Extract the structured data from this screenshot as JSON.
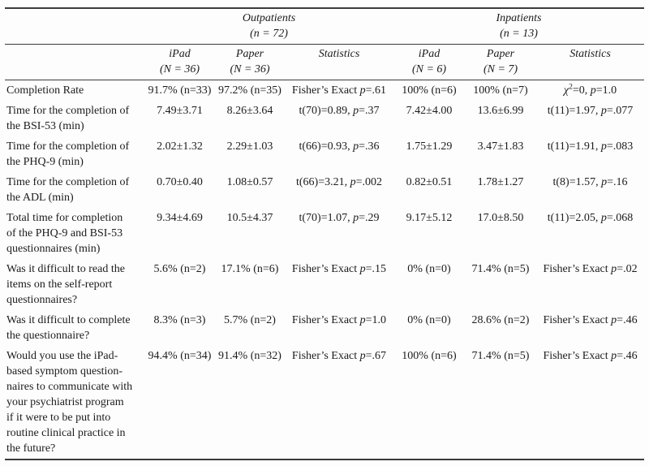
{
  "page": {
    "background": "#fdfdfd",
    "text_color": "#1c1c1c",
    "rule_color": "#3b3b3b"
  },
  "table": {
    "groups": [
      {
        "label": "Outpatients\n(n = 72)"
      },
      {
        "label": "Inpatients\n(n = 13)"
      }
    ],
    "columns": [
      "iPad\n(N = 36)",
      "Paper\n(N = 36)",
      "Statistics",
      "iPad\n(N = 6)",
      "Paper\n(N = 7)",
      "Statistics"
    ],
    "rows": [
      {
        "label": "Completion Rate",
        "cells": [
          "91.7% (n=33)",
          "97.2% (n=35)",
          [
            {
              "t": "Fisher’s Exact ",
              "s": "n"
            },
            {
              "t": "p",
              "s": "i"
            },
            {
              "t": "=.61",
              "s": "n"
            }
          ],
          "100% (n=6)",
          "100% (n=7)",
          [
            {
              "t": "χ",
              "s": "i"
            },
            {
              "t": "2",
              "s": "sup"
            },
            {
              "t": "=0, ",
              "s": "n"
            },
            {
              "t": "p",
              "s": "i"
            },
            {
              "t": "=1.0",
              "s": "n"
            }
          ]
        ]
      },
      {
        "label": "Time for the completion of\nthe BSI-53 (min)",
        "cells": [
          "7.49±3.71",
          "8.26±3.64",
          [
            {
              "t": "t(70)=0.89, ",
              "s": "n"
            },
            {
              "t": "p",
              "s": "i"
            },
            {
              "t": "=.37",
              "s": "n"
            }
          ],
          "7.42±4.00",
          "13.6±6.99",
          [
            {
              "t": "t(11)=1.97, ",
              "s": "n"
            },
            {
              "t": "p",
              "s": "i"
            },
            {
              "t": "=.077",
              "s": "n"
            }
          ]
        ]
      },
      {
        "label": "Time for the completion of\nthe PHQ-9 (min)",
        "cells": [
          "2.02±1.32",
          "2.29±1.03",
          [
            {
              "t": "t(66)=0.93, ",
              "s": "n"
            },
            {
              "t": "p",
              "s": "i"
            },
            {
              "t": "=.36",
              "s": "n"
            }
          ],
          "1.75±1.29",
          "3.47±1.83",
          [
            {
              "t": "t(11)=1.91, ",
              "s": "n"
            },
            {
              "t": "p",
              "s": "i"
            },
            {
              "t": "=.083",
              "s": "n"
            }
          ]
        ]
      },
      {
        "label": "Time for the completion of\nthe ADL (min)",
        "cells": [
          "0.70±0.40",
          "1.08±0.57",
          [
            {
              "t": "t(66)=3.21, ",
              "s": "n"
            },
            {
              "t": "p",
              "s": "i"
            },
            {
              "t": "=.002",
              "s": "n"
            }
          ],
          "0.82±0.51",
          "1.78±1.27",
          [
            {
              "t": "t(8)=1.57, ",
              "s": "n"
            },
            {
              "t": "p",
              "s": "i"
            },
            {
              "t": "=.16",
              "s": "n"
            }
          ]
        ]
      },
      {
        "label": "Total time for completion\nof the PHQ-9 and BSI-53\nquestionnaires  (min)",
        "cells": [
          "9.34±4.69",
          "10.5±4.37",
          [
            {
              "t": "t(70)=1.07, ",
              "s": "n"
            },
            {
              "t": "p",
              "s": "i"
            },
            {
              "t": "=.29",
              "s": "n"
            }
          ],
          "9.17±5.12",
          "17.0±8.50",
          [
            {
              "t": "t(11)=2.05, ",
              "s": "n"
            },
            {
              "t": "p",
              "s": "i"
            },
            {
              "t": "=.068",
              "s": "n"
            }
          ]
        ]
      },
      {
        "label": "Was it difficult to read the\nitems on the self-report\nquestionnaires?",
        "cells": [
          "5.6% (n=2)",
          "17.1% (n=6)",
          [
            {
              "t": "Fisher’s Exact ",
              "s": "n"
            },
            {
              "t": "p",
              "s": "i"
            },
            {
              "t": "=.15",
              "s": "n"
            }
          ],
          "0% (n=0)",
          "71.4% (n=5)",
          [
            {
              "t": "Fisher’s Exact ",
              "s": "n"
            },
            {
              "t": "p",
              "s": "i"
            },
            {
              "t": "=.02",
              "s": "n"
            }
          ]
        ]
      },
      {
        "label": "Was it difficult to complete\nthe questionnaire?",
        "cells": [
          "8.3% (n=3)",
          "5.7% (n=2)",
          [
            {
              "t": "Fisher’s Exact ",
              "s": "n"
            },
            {
              "t": "p",
              "s": "i"
            },
            {
              "t": "=1.0",
              "s": "n"
            }
          ],
          "0% (n=0)",
          "28.6% (n=2)",
          [
            {
              "t": "Fisher’s Exact ",
              "s": "n"
            },
            {
              "t": "p",
              "s": "i"
            },
            {
              "t": "=.46",
              "s": "n"
            }
          ]
        ]
      },
      {
        "label": "Would you use the iPad-\nbased symptom question-\nnaires to communicate with\nyour psychiatrist program\nif it were to be put into\nroutine clinical practice in\nthe future?",
        "cells": [
          "94.4% (n=34)",
          "91.4% (n=32)",
          [
            {
              "t": "Fisher’s Exact ",
              "s": "n"
            },
            {
              "t": "p",
              "s": "i"
            },
            {
              "t": "=.67",
              "s": "n"
            }
          ],
          "100% (n=6)",
          "71.4% (n=5)",
          [
            {
              "t": "Fisher’s Exact ",
              "s": "n"
            },
            {
              "t": "p",
              "s": "i"
            },
            {
              "t": "=.46",
              "s": "n"
            }
          ]
        ]
      }
    ]
  }
}
